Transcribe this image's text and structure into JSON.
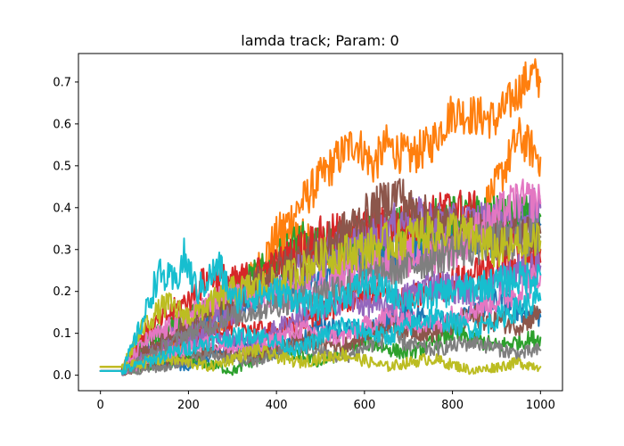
{
  "chart_data": {
    "type": "line",
    "title": "lamda track; Param: 0",
    "xlabel": "",
    "ylabel": "",
    "xlim": [
      0,
      1000
    ],
    "ylim": [
      0,
      0.75
    ],
    "x_ticks": [
      0,
      200,
      400,
      600,
      800,
      1000
    ],
    "y_ticks": [
      0.0,
      0.1,
      0.2,
      0.3,
      0.4,
      0.5,
      0.6,
      0.7
    ],
    "x_tick_labels": [
      "0",
      "200",
      "400",
      "600",
      "800",
      "1000"
    ],
    "y_tick_labels": [
      "0.0",
      "0.1",
      "0.2",
      "0.3",
      "0.4",
      "0.5",
      "0.6",
      "0.7"
    ],
    "grid": false,
    "legend": "none",
    "series": [
      {
        "color": "#ff7f0e",
        "points": [
          [
            0,
            0.02
          ],
          [
            50,
            0.02
          ],
          [
            100,
            0.05
          ],
          [
            150,
            0.07
          ],
          [
            200,
            0.1
          ],
          [
            250,
            0.14
          ],
          [
            300,
            0.18
          ],
          [
            350,
            0.24
          ],
          [
            400,
            0.33
          ],
          [
            450,
            0.4
          ],
          [
            500,
            0.47
          ],
          [
            550,
            0.53
          ],
          [
            580,
            0.56
          ],
          [
            620,
            0.5
          ],
          [
            650,
            0.55
          ],
          [
            700,
            0.52
          ],
          [
            750,
            0.55
          ],
          [
            800,
            0.63
          ],
          [
            850,
            0.62
          ],
          [
            900,
            0.61
          ],
          [
            950,
            0.68
          ],
          [
            980,
            0.72
          ],
          [
            1000,
            0.7
          ]
        ]
      },
      {
        "color": "#ff7f0e",
        "points": [
          [
            0,
            0.02
          ],
          [
            50,
            0.02
          ],
          [
            100,
            0.04
          ],
          [
            200,
            0.08
          ],
          [
            300,
            0.14
          ],
          [
            350,
            0.22
          ],
          [
            400,
            0.3
          ],
          [
            450,
            0.34
          ],
          [
            500,
            0.28
          ],
          [
            600,
            0.32
          ],
          [
            700,
            0.3
          ],
          [
            800,
            0.33
          ],
          [
            850,
            0.36
          ],
          [
            900,
            0.45
          ],
          [
            950,
            0.57
          ],
          [
            980,
            0.54
          ],
          [
            1000,
            0.52
          ]
        ]
      },
      {
        "color": "#1f77b4",
        "points": [
          [
            0,
            0.01
          ],
          [
            50,
            0.01
          ],
          [
            100,
            0.06
          ],
          [
            200,
            0.1
          ],
          [
            300,
            0.16
          ],
          [
            400,
            0.2
          ],
          [
            500,
            0.24
          ],
          [
            600,
            0.28
          ],
          [
            700,
            0.3
          ],
          [
            800,
            0.34
          ],
          [
            900,
            0.33
          ],
          [
            1000,
            0.36
          ]
        ]
      },
      {
        "color": "#1f77b4",
        "points": [
          [
            0,
            0.01
          ],
          [
            50,
            0.01
          ],
          [
            120,
            0.04
          ],
          [
            200,
            0.02
          ],
          [
            300,
            0.08
          ],
          [
            400,
            0.05
          ],
          [
            500,
            0.12
          ],
          [
            600,
            0.1
          ],
          [
            700,
            0.15
          ],
          [
            800,
            0.12
          ],
          [
            900,
            0.18
          ],
          [
            1000,
            0.14
          ]
        ]
      },
      {
        "color": "#2ca02c",
        "points": [
          [
            0,
            0.01
          ],
          [
            50,
            0.01
          ],
          [
            100,
            0.08
          ],
          [
            200,
            0.14
          ],
          [
            300,
            0.2
          ],
          [
            400,
            0.27
          ],
          [
            450,
            0.32
          ],
          [
            500,
            0.3
          ],
          [
            600,
            0.33
          ],
          [
            700,
            0.36
          ],
          [
            800,
            0.38
          ],
          [
            1000,
            0.38
          ]
        ]
      },
      {
        "color": "#2ca02c",
        "points": [
          [
            0,
            0.01
          ],
          [
            50,
            0.01
          ],
          [
            100,
            0.02
          ],
          [
            200,
            0.04
          ],
          [
            300,
            0.01
          ],
          [
            400,
            0.06
          ],
          [
            500,
            0.03
          ],
          [
            600,
            0.08
          ],
          [
            700,
            0.05
          ],
          [
            800,
            0.1
          ],
          [
            900,
            0.07
          ],
          [
            1000,
            0.09
          ]
        ]
      },
      {
        "color": "#d62728",
        "points": [
          [
            0,
            0.01
          ],
          [
            50,
            0.01
          ],
          [
            100,
            0.1
          ],
          [
            200,
            0.18
          ],
          [
            250,
            0.24
          ],
          [
            300,
            0.22
          ],
          [
            400,
            0.26
          ],
          [
            500,
            0.33
          ],
          [
            600,
            0.35
          ],
          [
            700,
            0.36
          ],
          [
            800,
            0.4
          ],
          [
            850,
            0.39
          ],
          [
            900,
            0.33
          ],
          [
            1000,
            0.3
          ]
        ]
      },
      {
        "color": "#d62728",
        "points": [
          [
            0,
            0.01
          ],
          [
            50,
            0.01
          ],
          [
            100,
            0.05
          ],
          [
            200,
            0.09
          ],
          [
            300,
            0.12
          ],
          [
            400,
            0.1
          ],
          [
            500,
            0.15
          ],
          [
            600,
            0.2
          ],
          [
            700,
            0.18
          ],
          [
            800,
            0.22
          ],
          [
            900,
            0.26
          ],
          [
            1000,
            0.27
          ]
        ]
      },
      {
        "color": "#9467bd",
        "points": [
          [
            0,
            0.01
          ],
          [
            50,
            0.01
          ],
          [
            100,
            0.05
          ],
          [
            200,
            0.12
          ],
          [
            300,
            0.15
          ],
          [
            400,
            0.22
          ],
          [
            500,
            0.28
          ],
          [
            600,
            0.32
          ],
          [
            700,
            0.38
          ],
          [
            800,
            0.36
          ],
          [
            900,
            0.37
          ],
          [
            1000,
            0.4
          ]
        ]
      },
      {
        "color": "#9467bd",
        "points": [
          [
            0,
            0.01
          ],
          [
            50,
            0.01
          ],
          [
            150,
            0.06
          ],
          [
            250,
            0.1
          ],
          [
            350,
            0.08
          ],
          [
            450,
            0.14
          ],
          [
            550,
            0.18
          ],
          [
            650,
            0.16
          ],
          [
            750,
            0.22
          ],
          [
            850,
            0.2
          ],
          [
            950,
            0.25
          ],
          [
            1000,
            0.26
          ]
        ]
      },
      {
        "color": "#8c564b",
        "points": [
          [
            0,
            0.01
          ],
          [
            50,
            0.01
          ],
          [
            100,
            0.06
          ],
          [
            200,
            0.12
          ],
          [
            300,
            0.18
          ],
          [
            400,
            0.25
          ],
          [
            500,
            0.3
          ],
          [
            600,
            0.38
          ],
          [
            650,
            0.42
          ],
          [
            680,
            0.44
          ],
          [
            700,
            0.4
          ],
          [
            800,
            0.35
          ],
          [
            900,
            0.33
          ],
          [
            1000,
            0.34
          ]
        ]
      },
      {
        "color": "#8c564b",
        "points": [
          [
            0,
            0.01
          ],
          [
            50,
            0.01
          ],
          [
            150,
            0.03
          ],
          [
            250,
            0.06
          ],
          [
            350,
            0.04
          ],
          [
            450,
            0.09
          ],
          [
            550,
            0.07
          ],
          [
            650,
            0.12
          ],
          [
            750,
            0.1
          ],
          [
            850,
            0.14
          ],
          [
            950,
            0.12
          ],
          [
            1000,
            0.15
          ]
        ]
      },
      {
        "color": "#e377c2",
        "points": [
          [
            0,
            0.01
          ],
          [
            50,
            0.01
          ],
          [
            100,
            0.08
          ],
          [
            200,
            0.14
          ],
          [
            300,
            0.2
          ],
          [
            400,
            0.18
          ],
          [
            500,
            0.22
          ],
          [
            600,
            0.25
          ],
          [
            700,
            0.28
          ],
          [
            800,
            0.3
          ],
          [
            900,
            0.38
          ],
          [
            950,
            0.42
          ],
          [
            1000,
            0.41
          ]
        ]
      },
      {
        "color": "#e377c2",
        "points": [
          [
            0,
            0.01
          ],
          [
            50,
            0.01
          ],
          [
            150,
            0.05
          ],
          [
            250,
            0.08
          ],
          [
            350,
            0.06
          ],
          [
            450,
            0.11
          ],
          [
            550,
            0.09
          ],
          [
            650,
            0.14
          ],
          [
            750,
            0.12
          ],
          [
            850,
            0.16
          ],
          [
            950,
            0.2
          ],
          [
            1000,
            0.24
          ]
        ]
      },
      {
        "color": "#7f7f7f",
        "points": [
          [
            0,
            0.01
          ],
          [
            50,
            0.01
          ],
          [
            100,
            0.04
          ],
          [
            200,
            0.1
          ],
          [
            300,
            0.14
          ],
          [
            400,
            0.17
          ],
          [
            500,
            0.2
          ],
          [
            600,
            0.23
          ],
          [
            700,
            0.26
          ],
          [
            800,
            0.3
          ],
          [
            900,
            0.32
          ],
          [
            1000,
            0.33
          ]
        ]
      },
      {
        "color": "#7f7f7f",
        "points": [
          [
            0,
            0.01
          ],
          [
            50,
            0.01
          ],
          [
            150,
            0.02
          ],
          [
            250,
            0.05
          ],
          [
            350,
            0.03
          ],
          [
            450,
            0.07
          ],
          [
            550,
            0.04
          ],
          [
            650,
            0.09
          ],
          [
            750,
            0.06
          ],
          [
            850,
            0.08
          ],
          [
            950,
            0.05
          ],
          [
            1000,
            0.06
          ]
        ]
      },
      {
        "color": "#bcbd22",
        "points": [
          [
            0,
            0.02
          ],
          [
            50,
            0.02
          ],
          [
            100,
            0.12
          ],
          [
            150,
            0.17
          ],
          [
            200,
            0.14
          ],
          [
            300,
            0.2
          ],
          [
            400,
            0.22
          ],
          [
            500,
            0.28
          ],
          [
            600,
            0.3
          ],
          [
            700,
            0.33
          ],
          [
            800,
            0.35
          ],
          [
            900,
            0.3
          ],
          [
            1000,
            0.32
          ]
        ]
      },
      {
        "color": "#bcbd22",
        "points": [
          [
            0,
            0.02
          ],
          [
            50,
            0.02
          ],
          [
            150,
            0.04
          ],
          [
            250,
            0.02
          ],
          [
            350,
            0.06
          ],
          [
            450,
            0.03
          ],
          [
            550,
            0.05
          ],
          [
            650,
            0.02
          ],
          [
            750,
            0.04
          ],
          [
            850,
            0.01
          ],
          [
            950,
            0.03
          ],
          [
            1000,
            0.02
          ]
        ]
      },
      {
        "color": "#17becf",
        "points": [
          [
            0,
            0.01
          ],
          [
            50,
            0.01
          ],
          [
            100,
            0.14
          ],
          [
            130,
            0.24
          ],
          [
            170,
            0.22
          ],
          [
            190,
            0.28
          ],
          [
            220,
            0.2
          ],
          [
            270,
            0.26
          ],
          [
            300,
            0.18
          ],
          [
            400,
            0.2
          ],
          [
            500,
            0.16
          ],
          [
            600,
            0.22
          ],
          [
            700,
            0.18
          ],
          [
            800,
            0.2
          ],
          [
            900,
            0.22
          ],
          [
            1000,
            0.24
          ]
        ]
      },
      {
        "color": "#17becf",
        "points": [
          [
            0,
            0.01
          ],
          [
            50,
            0.01
          ],
          [
            150,
            0.05
          ],
          [
            250,
            0.08
          ],
          [
            350,
            0.1
          ],
          [
            450,
            0.06
          ],
          [
            550,
            0.12
          ],
          [
            650,
            0.09
          ],
          [
            750,
            0.14
          ],
          [
            850,
            0.11
          ],
          [
            950,
            0.16
          ],
          [
            1000,
            0.18
          ]
        ]
      }
    ]
  }
}
